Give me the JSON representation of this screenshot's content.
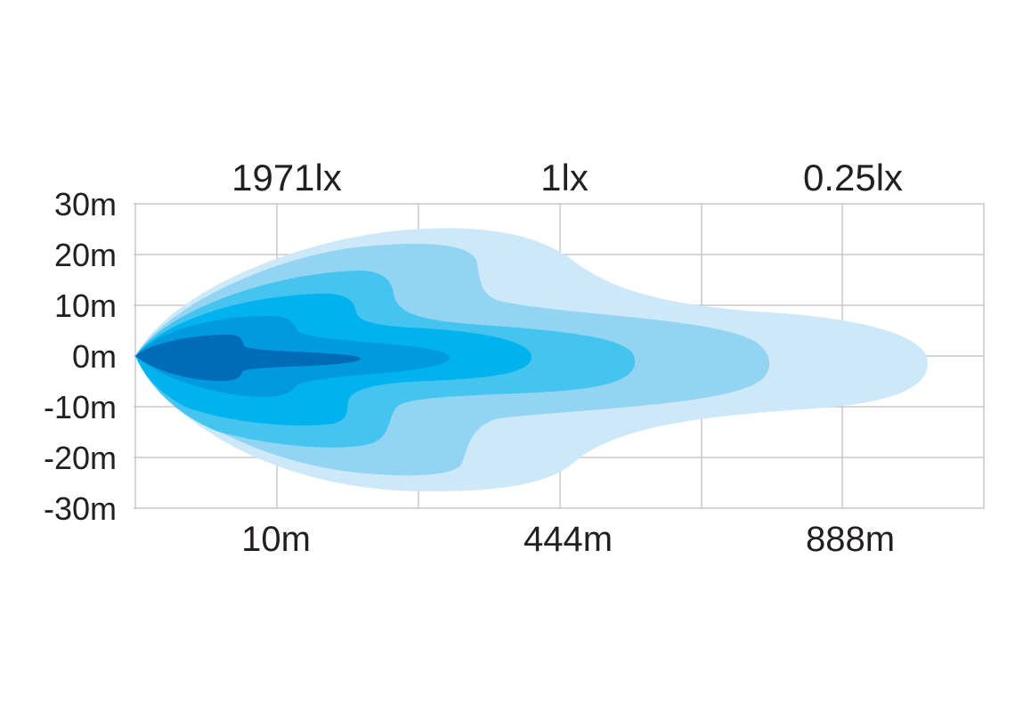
{
  "chart_data": {
    "type": "area",
    "y_ticks": [
      "30m",
      "20m",
      "10m",
      "0m",
      "-10m",
      "-20m",
      "-30m"
    ],
    "y_values": [
      30,
      20,
      10,
      0,
      -10,
      -20,
      -30
    ],
    "ylim": [
      -30,
      30
    ],
    "x_tick_labels": [
      "10m",
      "444m",
      "888m"
    ],
    "lux_labels": [
      "1971lx",
      "1lx",
      "0.25lx"
    ],
    "grid": true,
    "palette": [
      "#cde9f9",
      "#93d4f3",
      "#45c4f0",
      "#00b2ee",
      "#029ade",
      "#006cb8"
    ]
  }
}
